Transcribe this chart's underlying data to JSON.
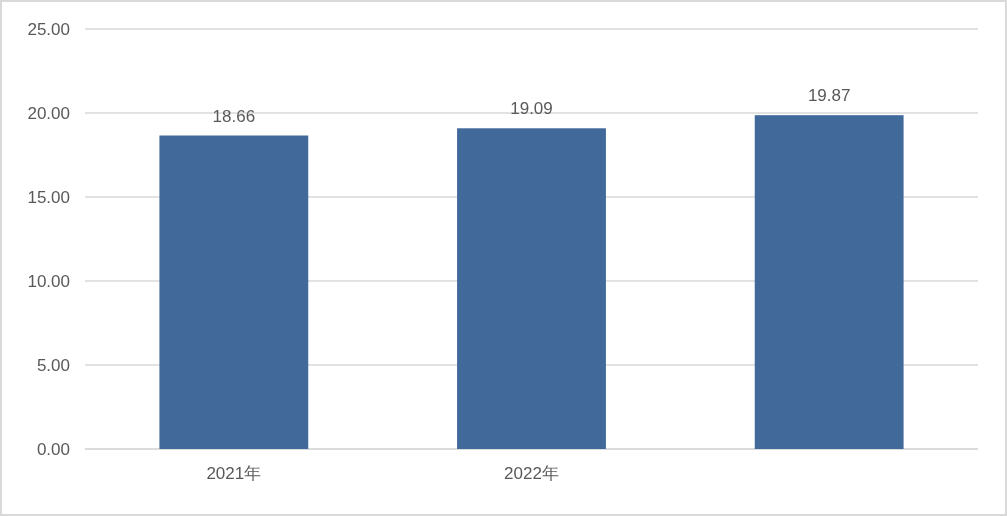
{
  "chart_data": {
    "type": "bar",
    "categories": [
      "2021年",
      "2022年",
      null
    ],
    "values": [
      18.66,
      19.09,
      19.87
    ],
    "color": "#41699a",
    "ylim": [
      0,
      25
    ],
    "yticks": [
      {
        "value": 0,
        "label": "0.00"
      },
      {
        "value": 5,
        "label": "5.00"
      },
      {
        "value": 10,
        "label": "10.00"
      },
      {
        "value": 15,
        "label": "15.00"
      },
      {
        "value": 20,
        "label": "20.00"
      },
      {
        "value": 25,
        "label": "25.00"
      }
    ],
    "grid": "y",
    "data_labels": true
  }
}
